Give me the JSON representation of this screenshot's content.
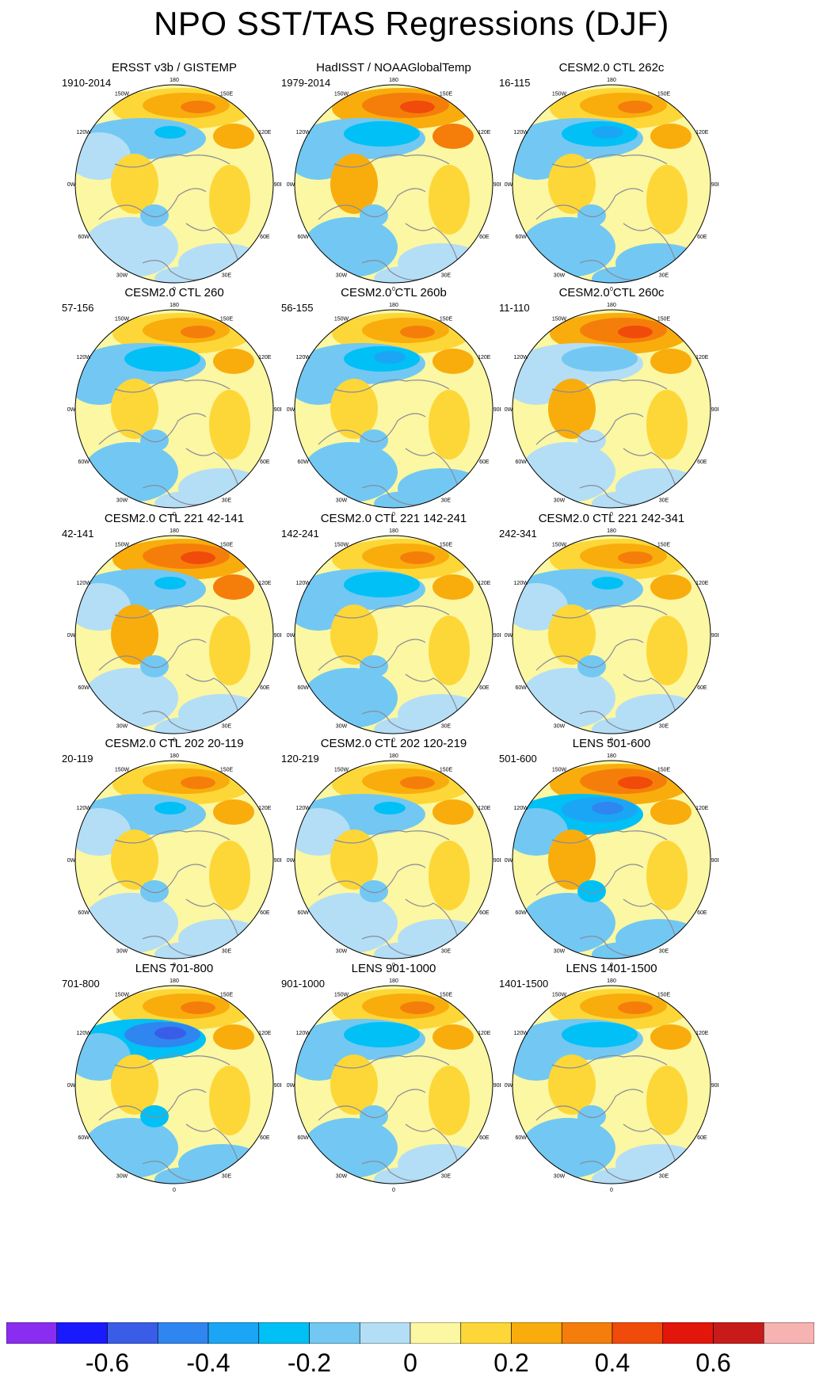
{
  "chart_data": {
    "type": "polar_stereographic_contour_map_grid",
    "title": "NPO SST/TAS Regressions (DJF)",
    "variable": "SST/TAS regression onto North Pacific Oscillation",
    "season": "DJF",
    "projection": "north polar stereographic",
    "longitude_labels": [
      "180",
      "150E",
      "120E",
      "90E",
      "60E",
      "30E",
      "0",
      "30W",
      "60W",
      "90W",
      "120W",
      "150W"
    ],
    "panels": [
      {
        "title": "ERSST v3b / GISTEMP",
        "period": "1910-2014",
        "max_positive": 0.3,
        "max_negative": -0.25,
        "pattern": "observed"
      },
      {
        "title": "HadISST / NOAAGlobalTemp",
        "period": "1979-2014",
        "max_positive": 0.45,
        "max_negative": -0.3,
        "pattern": "observed"
      },
      {
        "title": "CESM2.0 CTL 262c",
        "period": "16-115",
        "max_positive": 0.3,
        "max_negative": -0.4,
        "pattern": "model"
      },
      {
        "title": "CESM2.0 CTL 260",
        "period": "57-156",
        "max_positive": 0.3,
        "max_negative": -0.3,
        "pattern": "model"
      },
      {
        "title": "CESM2.0 CTL 260b",
        "period": "56-155",
        "max_positive": 0.3,
        "max_negative": -0.35,
        "pattern": "model"
      },
      {
        "title": "CESM2.0 CTL 260c",
        "period": "11-110",
        "max_positive": 0.4,
        "max_negative": -0.15,
        "pattern": "model"
      },
      {
        "title": "CESM2.0 CTL 221 42-141",
        "period": "42-141",
        "max_positive": 0.45,
        "max_negative": -0.25,
        "pattern": "model"
      },
      {
        "title": "CESM2.0 CTL 221 142-241",
        "period": "142-241",
        "max_positive": 0.3,
        "max_negative": -0.3,
        "pattern": "model"
      },
      {
        "title": "CESM2.0 CTL 221 242-341",
        "period": "242-341",
        "max_positive": 0.3,
        "max_negative": -0.25,
        "pattern": "model"
      },
      {
        "title": "CESM2.0 CTL 202 20-119",
        "period": "20-119",
        "max_positive": 0.35,
        "max_negative": -0.25,
        "pattern": "model"
      },
      {
        "title": "CESM2.0 CTL 202 120-219",
        "period": "120-219",
        "max_positive": 0.35,
        "max_negative": -0.25,
        "pattern": "model"
      },
      {
        "title": "LENS 501-600",
        "period": "501-600",
        "max_positive": 0.4,
        "max_negative": -0.45,
        "pattern": "model"
      },
      {
        "title": "LENS 701-800",
        "period": "701-800",
        "max_positive": 0.35,
        "max_negative": -0.55,
        "pattern": "model"
      },
      {
        "title": "LENS 901-1000",
        "period": "901-1000",
        "max_positive": 0.35,
        "max_negative": -0.3,
        "pattern": "model"
      },
      {
        "title": "LENS 1401-1500",
        "period": "1401-1500",
        "max_positive": 0.35,
        "max_negative": -0.3,
        "pattern": "model"
      }
    ],
    "colorbar": {
      "colors": [
        "#8b2df0",
        "#1a1aff",
        "#3a5de8",
        "#2f86f0",
        "#1aa6f5",
        "#00c0f5",
        "#72c8f2",
        "#b4def5",
        "#fbf7a2",
        "#fdd737",
        "#f8ad0d",
        "#f57e0a",
        "#f04b0a",
        "#e3160b",
        "#c91a1a",
        "#f7b2b2"
      ],
      "ticks": [
        "-0.6",
        "-0.4",
        "-0.2",
        "0",
        "0.2",
        "0.4",
        "0.6"
      ],
      "tick_values": [
        -0.6,
        -0.4,
        -0.2,
        0,
        0.2,
        0.4,
        0.6
      ],
      "range": [
        -0.8,
        0.8
      ],
      "interval": 0.1
    }
  }
}
